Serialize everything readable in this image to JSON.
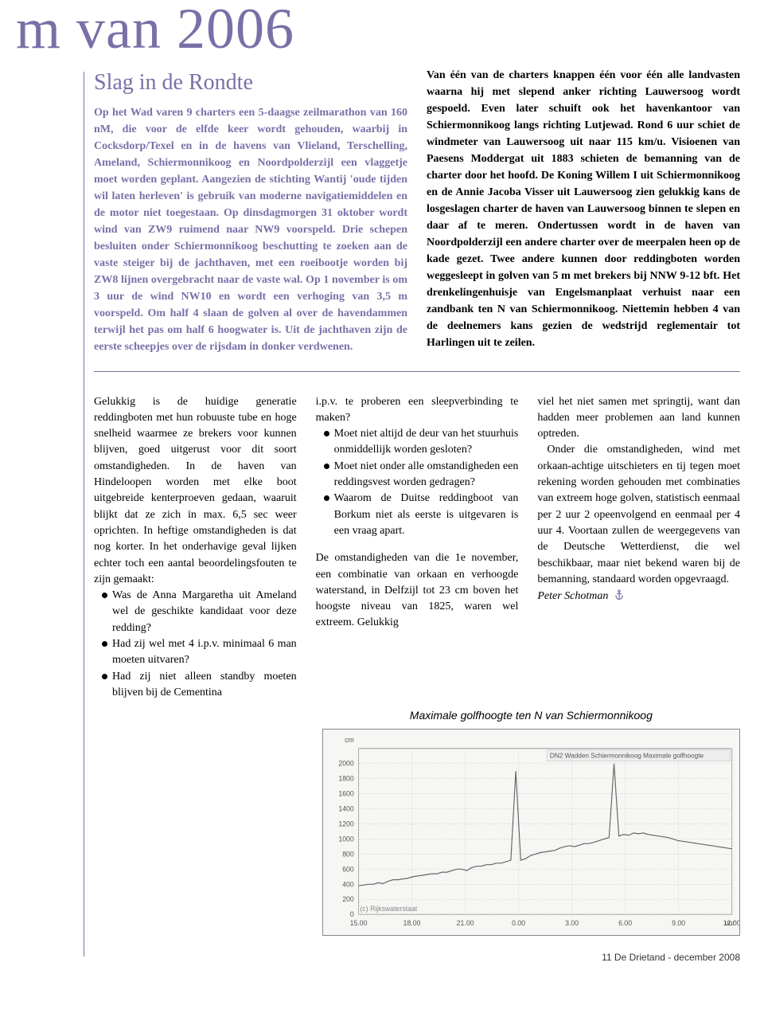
{
  "page": {
    "main_title": "m van 2006",
    "footer": "11 De Drietand - december 2008"
  },
  "callout": {
    "heading": "Slag in de Rondte",
    "left_text": "Op het Wad varen 9 charters een 5-daagse zeilmarathon van 160 nM, die voor de elfde keer wordt gehouden, waarbij in Cocksdorp/Texel en in de havens van Vlieland, Terschelling, Ameland, Schiermonnikoog en Noordpolderzijl een vlaggetje moet worden geplant. Aangezien de stichting Wantij 'oude tijden wil laten herleven' is gebruik van moderne navigatiemiddelen en de motor niet toegestaan. Op dinsdagmorgen 31 oktober wordt wind van ZW9 ruimend naar NW9 voorspeld. Drie schepen besluiten onder Schiermonnikoog beschutting te zoeken aan de vaste steiger bij de jachthaven, met een roeibootje worden bij ZW8 lijnen overgebracht naar de vaste wal. Op 1 november is om 3 uur de wind NW10 en wordt een verhoging van 3,5 m voorspeld. Om half 4 slaan de golven al over de havendammen terwijl het pas om half 6 hoogwater is. Uit de jachthaven zijn de eerste scheepjes over de rijsdam in donker verdwenen.",
    "right_text": "Van één van de charters knappen één voor één alle landvasten waarna hij met slepend anker richting Lauwersoog wordt gespoeld. Even later schuift ook het havenkantoor van Schiermonnikoog langs richting Lutjewad. Rond 6 uur schiet de windmeter van Lauwersoog uit naar 115 km/u. Visioenen van Paesens Moddergat uit 1883 schieten de bemanning van de charter door het hoofd. De Koning Willem I uit Schiermonnikoog en de Annie Jacoba Visser uit Lauwersoog zien gelukkig kans de losgeslagen charter de haven van Lauwersoog binnen te slepen en daar af te meren. Ondertussen wordt in de haven van Noordpolderzijl een andere charter over de meerpalen heen op de kade gezet. Twee andere kunnen door reddingboten worden weggesleept in golven van 5 m met brekers bij NNW 9-12 bft. Het drenkelingenhuisje van Engelsmanplaat verhuist naar een zandbank ten N van Schiermonnikoog. Niettemin hebben 4 van de deelnemers kans gezien de wedstrijd reglementair tot Harlingen uit te zeilen."
  },
  "body": {
    "col1": {
      "p1": "Gelukkig is de huidige generatie reddingboten met hun robuuste tube en hoge snelheid waarmee ze brekers voor kunnen blijven, goed uitgerust voor dit soort omstandigheden. In de haven van Hindeloopen worden met elke boot uitgebreide kenterproeven gedaan, waaruit blijkt dat ze zich in max. 6,5 sec weer oprichten. In heftige omstandigheden is dat nog korter. In het onderhavige geval lijken echter toch een aantal beoordelingsfouten te zijn gemaakt:",
      "b1": "Was de Anna Margaretha uit Ameland wel de geschikte kandidaat voor deze redding?",
      "b2": "Had zij wel met 4 i.p.v. minimaal 6 man moeten uitvaren?",
      "b3": "Had zij niet alleen standby moeten blijven bij de Cementina"
    },
    "col2": {
      "p1": "i.p.v. te proberen een sleepverbinding te maken?",
      "b1": "Moet niet altijd de deur van het stuurhuis onmiddellijk worden gesloten?",
      "b2": "Moet niet onder alle omstandigheden een reddingsvest worden gedragen?",
      "b3": "Waarom de Duitse reddingboot van Borkum niet als eerste is uitgevaren is een vraag apart.",
      "p2": "De omstandigheden van die 1e november, een combinatie van orkaan en verhoogde waterstand, in Delfzijl tot 23 cm boven het hoogste niveau van 1825, waren wel extreem. Gelukkig"
    },
    "col3": {
      "p1": "viel het niet samen met springtij, want dan hadden meer problemen aan land kunnen optreden.",
      "p2": "Onder die omstandigheden, wind met orkaan-achtige uitschieters en tij tegen moet rekening worden gehouden met combinaties van extreem hoge golven, statistisch eenmaal per 2 uur 2 opeenvolgend en eenmaal per 4 uur 4. Voortaan zullen de weergegevens van de Deutsche Wetterdienst, die wel beschikbaar, maar niet bekend waren bij de bemanning, standaard worden opgevraagd.",
      "author": "Peter Schotman"
    }
  },
  "chart": {
    "title": "Maximale golfhoogte ten N van Schiermonnikoog",
    "inner_label": "DN2 Wadden Schiermonnikoog Maximale golfhoogte",
    "credit": "(c) Rijkswaterstaat",
    "y_unit": "cm",
    "x_unit": "uur",
    "ylim": [
      0,
      2200
    ],
    "ytick_step": 200,
    "yticks": [
      0,
      200,
      400,
      600,
      800,
      1000,
      1200,
      1400,
      1600,
      1800,
      2000
    ],
    "xticks": [
      "15.00",
      "18.00",
      "21.00",
      "0.00",
      "3.00",
      "6.00",
      "9.00",
      "12.00"
    ],
    "grid_color": "#cccccc",
    "line_color": "#666666",
    "background": "#f6f6f4",
    "data": [
      380,
      390,
      400,
      400,
      420,
      410,
      440,
      460,
      460,
      470,
      480,
      500,
      510,
      520,
      530,
      540,
      540,
      560,
      560,
      580,
      600,
      600,
      580,
      620,
      640,
      640,
      660,
      660,
      680,
      680,
      700,
      720,
      1900,
      720,
      740,
      780,
      800,
      820,
      830,
      840,
      850,
      880,
      900,
      910,
      900,
      920,
      940,
      940,
      960,
      980,
      1000,
      1020,
      2000,
      1040,
      1060,
      1050,
      1080,
      1070,
      1080,
      1060,
      1050,
      1040,
      1030,
      1020,
      1000,
      980,
      970,
      960,
      950,
      940,
      930,
      920,
      910,
      900,
      890,
      880,
      870
    ]
  },
  "colors": {
    "purple": "#7b6fa8",
    "black": "#000000",
    "grid": "#cccccc",
    "chart_bg": "#f6f6f4"
  }
}
